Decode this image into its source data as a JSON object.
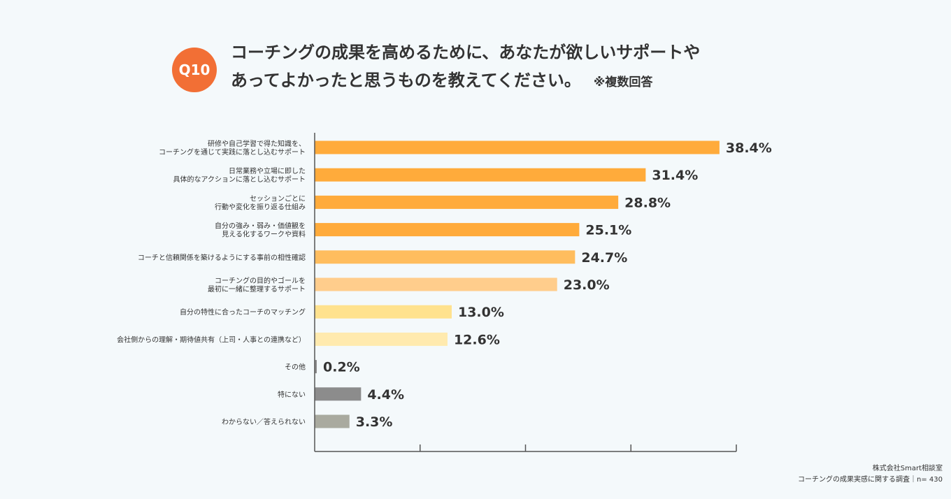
{
  "question": {
    "badge": "Q10",
    "title_line1": "コーチングの成果を高めるために、あなたが欲しいサポートや",
    "title_line2": "あってよかったと思うものを教えてください。",
    "note": "※複数回答"
  },
  "footer": {
    "company": "株式会社Smart相談室",
    "survey": "コーチングの成果実感に関する調査｜n= 430"
  },
  "colors": {
    "badge": "#f26f35",
    "axis": "#555555"
  },
  "chart_data": {
    "type": "bar",
    "orientation": "horizontal",
    "categories": [
      [
        "研修や自己学習で得た知識を、",
        "コーチングを通じて実践に落とし込むサポート"
      ],
      [
        "日常業務や立場に即した",
        "具体的なアクションに落とし込むサポート"
      ],
      [
        "セッションごとに",
        "行動や変化を振り返る仕組み"
      ],
      [
        "自分の強み・弱み・価値観を",
        "見える化するワークや資料"
      ],
      [
        "コーチと信頼関係を築けるようにする事前の相性確認"
      ],
      [
        "コーチングの目的やゴールを",
        "最初に一緒に整理するサポート"
      ],
      [
        "自分の特性に合ったコーチのマッチング"
      ],
      [
        "会社側からの理解・期待値共有（上司・人事との連携など）"
      ],
      [
        "その他"
      ],
      [
        "特にない"
      ],
      [
        "わからない／答えられない"
      ]
    ],
    "values": [
      38.4,
      31.4,
      28.8,
      25.1,
      24.7,
      23.0,
      13.0,
      12.6,
      0.2,
      4.4,
      3.3
    ],
    "value_labels": [
      "38.4%",
      "31.4%",
      "28.8%",
      "25.1%",
      "24.7%",
      "23.0%",
      "13.0%",
      "12.6%",
      "0.2%",
      "4.4%",
      "3.3%"
    ],
    "bar_colors": [
      "#ffab3b",
      "#ffab3b",
      "#ffab3b",
      "#ffab3b",
      "#ffbd5e",
      "#ffcd8c",
      "#ffe28e",
      "#ffeaae",
      "#8c8c8c",
      "#8c8c8c",
      "#a9aa9f"
    ],
    "xlim": [
      0,
      40
    ],
    "x_ticks": [
      0,
      10,
      20,
      30,
      40
    ],
    "grid": false,
    "legend": "none"
  }
}
